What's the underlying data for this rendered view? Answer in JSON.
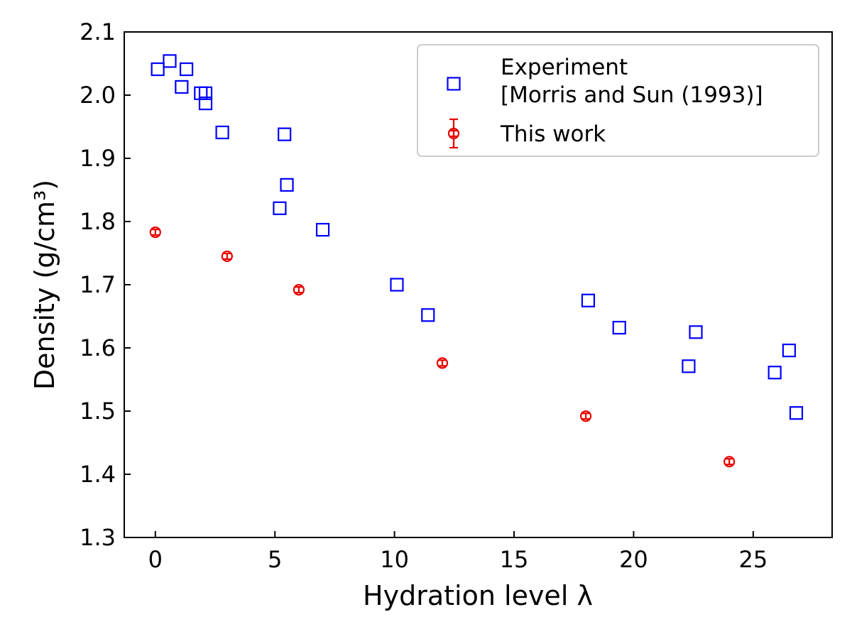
{
  "chart_data": {
    "type": "scatter",
    "xlabel": "Hydration level λ",
    "ylabel": "Density (g/cm³)",
    "xlim": [
      -1.3,
      28.3
    ],
    "ylim": [
      1.3,
      2.1
    ],
    "xticks": [
      0,
      5,
      10,
      15,
      20,
      25
    ],
    "yticks": [
      1.3,
      1.4,
      1.5,
      1.6,
      1.7,
      1.8,
      1.9,
      2.0,
      2.1
    ],
    "ytick_labels": [
      "1.3",
      "1.4",
      "1.5",
      "1.6",
      "1.7",
      "1.8",
      "1.9",
      "2.0",
      "2.1"
    ],
    "grid": false,
    "legend_position": "top-right",
    "series": [
      {
        "name": "Experiment\n[Morris and Sun (1993)]",
        "legend_lines": [
          "Experiment",
          "[Morris and Sun (1993)]"
        ],
        "marker": "square",
        "color": "#0000ff",
        "x": [
          0.1,
          0.6,
          1.1,
          1.3,
          1.9,
          2.1,
          2.1,
          2.8,
          5.2,
          5.4,
          5.5,
          7.0,
          10.1,
          11.4,
          18.1,
          19.4,
          22.3,
          22.6,
          25.9,
          26.5,
          26.8
        ],
        "y": [
          2.041,
          2.054,
          2.013,
          2.041,
          2.003,
          2.003,
          1.987,
          1.941,
          1.821,
          1.938,
          1.858,
          1.787,
          1.7,
          1.652,
          1.675,
          1.632,
          1.571,
          1.625,
          1.561,
          1.596,
          1.497
        ]
      },
      {
        "name": "This work",
        "legend_lines": [
          "This work"
        ],
        "marker": "circle",
        "error_bars": true,
        "color": "#e50000",
        "x": [
          0,
          3,
          6,
          12,
          18,
          24
        ],
        "y": [
          1.783,
          1.745,
          1.692,
          1.576,
          1.492,
          1.42
        ]
      }
    ]
  }
}
